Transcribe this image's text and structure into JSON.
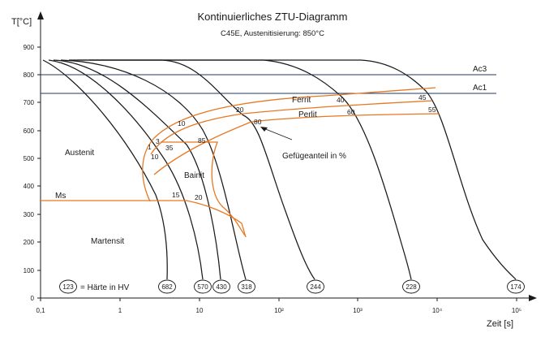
{
  "title": "Kontinuierliches ZTU-Diagramm",
  "subtitle": "C45E, Austenitisierung: 850°C",
  "y_axis": {
    "label": "T[°C]",
    "ticks": [
      "0",
      "100",
      "200",
      "300",
      "400",
      "500",
      "600",
      "700",
      "800",
      "900"
    ]
  },
  "x_axis": {
    "label": "Zeit [s]",
    "ticks": [
      "0,1",
      "1",
      "10",
      "10²",
      "10³",
      "10⁴",
      "10⁵"
    ]
  },
  "reference_lines": {
    "ac3": "Ac3",
    "ac1": "Ac1",
    "ms": "Ms"
  },
  "regions": {
    "austenit": "Austenit",
    "bainit": "Bainit",
    "martensit": "Martensit",
    "ferrit": "Ferrit",
    "perlit": "Perlit",
    "phase_note": "Gefügeanteil in %"
  },
  "phase_percentages": {
    "p1": "1",
    "p3": "3",
    "p10a": "10",
    "p10b": "10",
    "p15": "15",
    "p20a": "20",
    "p20b": "20",
    "p35": "35",
    "p40": "40",
    "p45": "45",
    "p55": "55",
    "p60": "60",
    "p80": "80",
    "p85": "85"
  },
  "hardness_legend": {
    "example": "123",
    "text": "= Härte in HV"
  },
  "hardness_values": [
    "682",
    "570",
    "430",
    "318",
    "244",
    "228",
    "174"
  ],
  "colors": {
    "cooling_curves": "#1a1a1a",
    "phase_boundaries": "#e87722",
    "reference_lines": "#223a5e"
  }
}
